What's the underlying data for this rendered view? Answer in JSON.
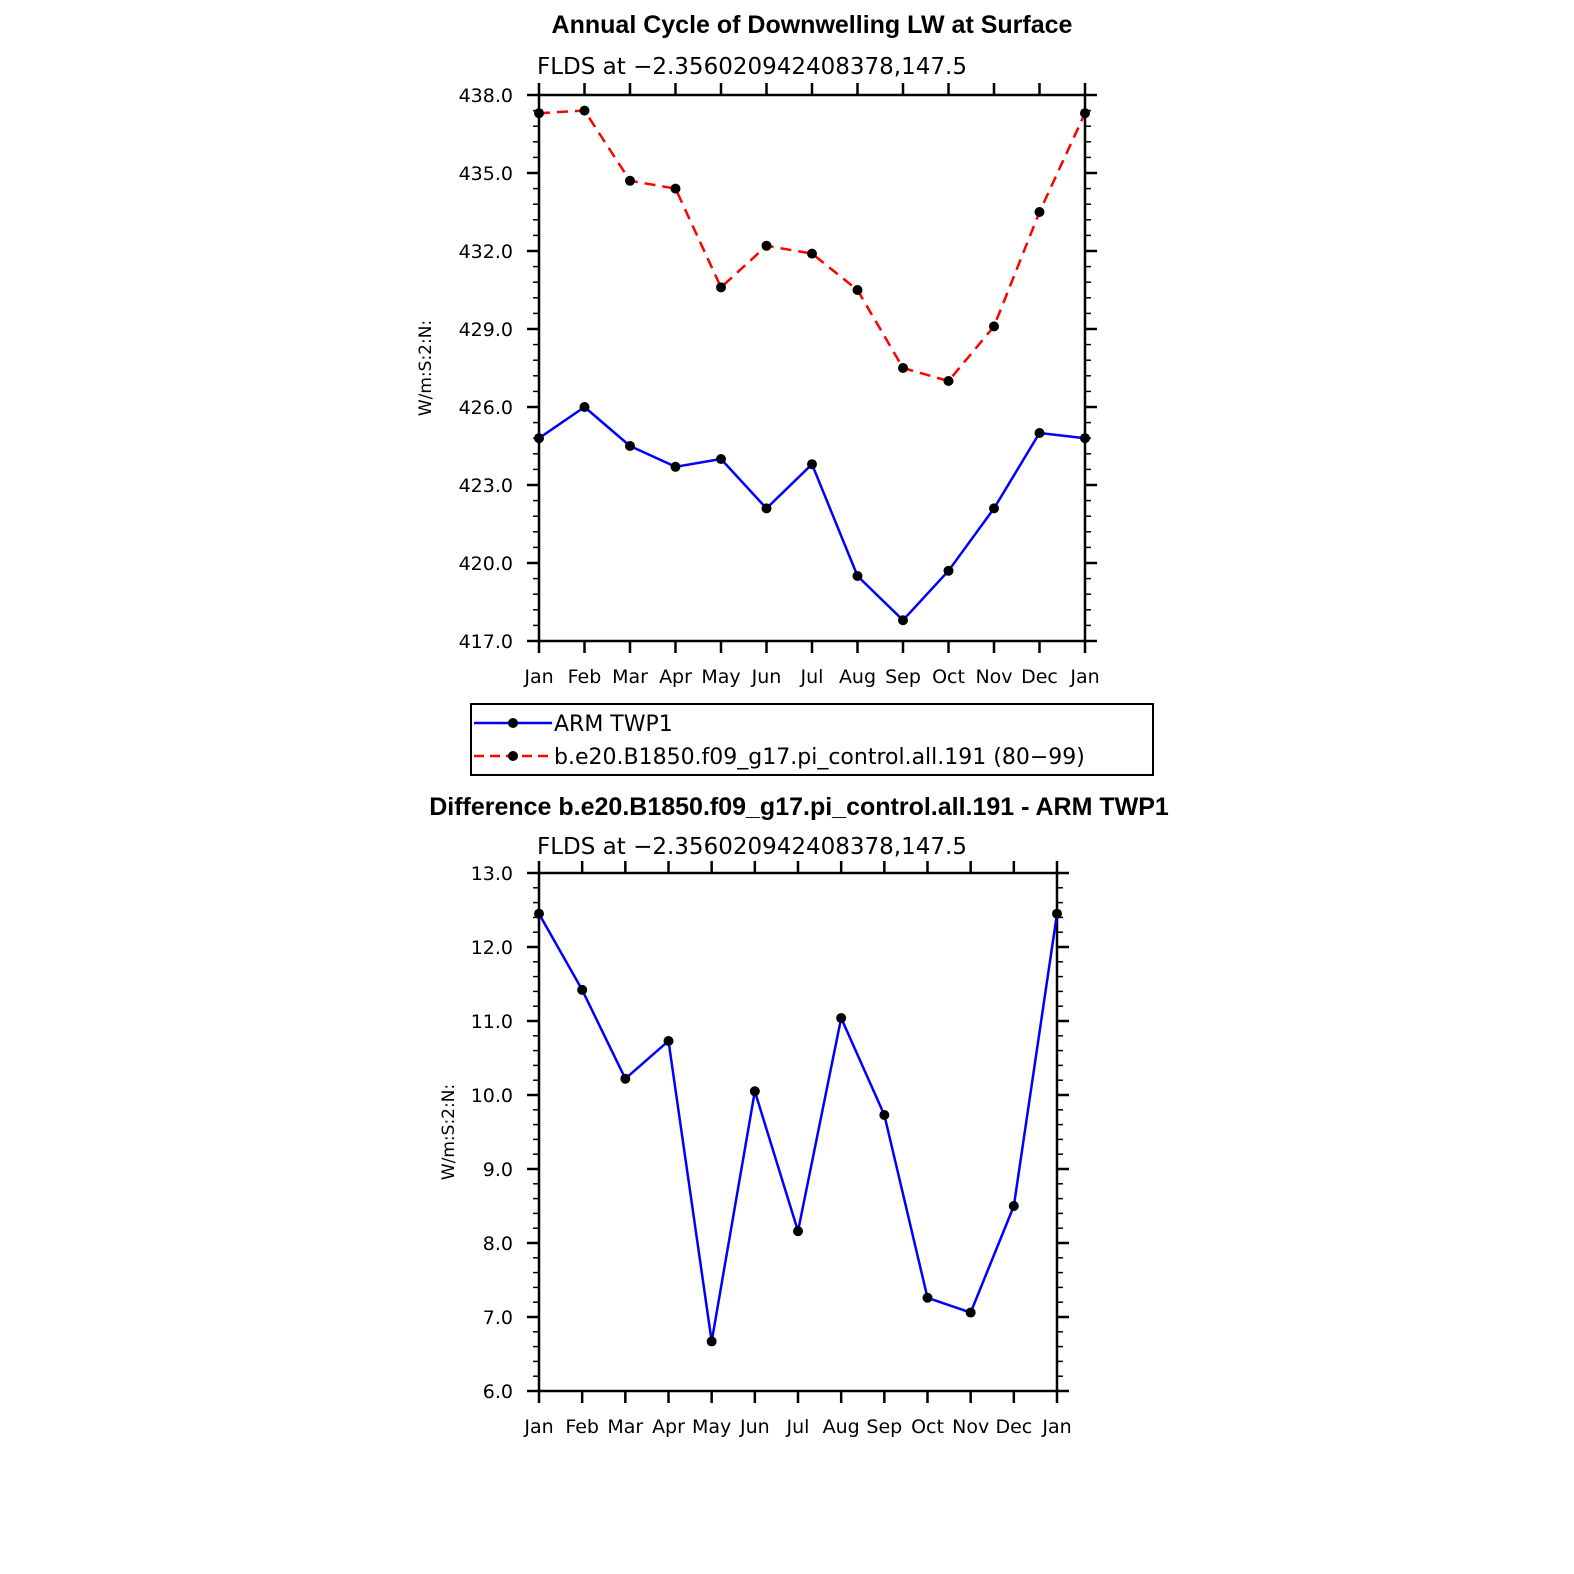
{
  "chart_data": [
    {
      "type": "line",
      "title": "Annual Cycle of Downwelling LW at Surface",
      "subtitle": "FLDS at −2.356020942408378,147.5",
      "ylabel": "W/m:S:2:N:",
      "xlabel": "",
      "categories": [
        "Jan",
        "Feb",
        "Mar",
        "Apr",
        "May",
        "Jun",
        "Jul",
        "Aug",
        "Sep",
        "Oct",
        "Nov",
        "Dec",
        "Jan"
      ],
      "ylim": [
        417.0,
        438.0
      ],
      "yticks": [
        "417.0",
        "420.0",
        "423.0",
        "426.0",
        "429.0",
        "432.0",
        "435.0",
        "438.0"
      ],
      "grid": false,
      "legend_position": "below",
      "series": [
        {
          "name": "ARM TWP1",
          "color": "#0000ff",
          "dash": "solid",
          "values": [
            424.8,
            426.0,
            424.5,
            423.7,
            424.0,
            422.1,
            423.8,
            419.5,
            417.8,
            419.7,
            422.1,
            425.0,
            424.8
          ]
        },
        {
          "name": "b.e20.B1850.f09_g17.pi_control.all.191 (80−99)",
          "color": "#ff0000",
          "dash": "dashed",
          "values": [
            437.3,
            437.4,
            434.7,
            434.4,
            430.6,
            432.2,
            431.9,
            430.5,
            427.5,
            427.0,
            429.1,
            433.5,
            437.3
          ]
        }
      ]
    },
    {
      "type": "line",
      "title": "Difference b.e20.B1850.f09_g17.pi_control.all.191 - ARM TWP1",
      "subtitle": "FLDS at −2.356020942408378,147.5",
      "ylabel": "W/m:S:2:N:",
      "xlabel": "",
      "categories": [
        "Jan",
        "Feb",
        "Mar",
        "Apr",
        "May",
        "Jun",
        "Jul",
        "Aug",
        "Sep",
        "Oct",
        "Nov",
        "Dec",
        "Jan"
      ],
      "ylim": [
        6.0,
        13.0
      ],
      "yticks": [
        "6.0",
        "7.0",
        "8.0",
        "9.0",
        "10.0",
        "11.0",
        "12.0",
        "13.0"
      ],
      "grid": false,
      "series": [
        {
          "color": "#0000ff",
          "dash": "solid",
          "values": [
            12.45,
            11.42,
            10.22,
            10.73,
            6.67,
            10.05,
            8.16,
            11.04,
            9.73,
            7.26,
            7.06,
            8.5,
            12.45
          ]
        }
      ]
    }
  ]
}
